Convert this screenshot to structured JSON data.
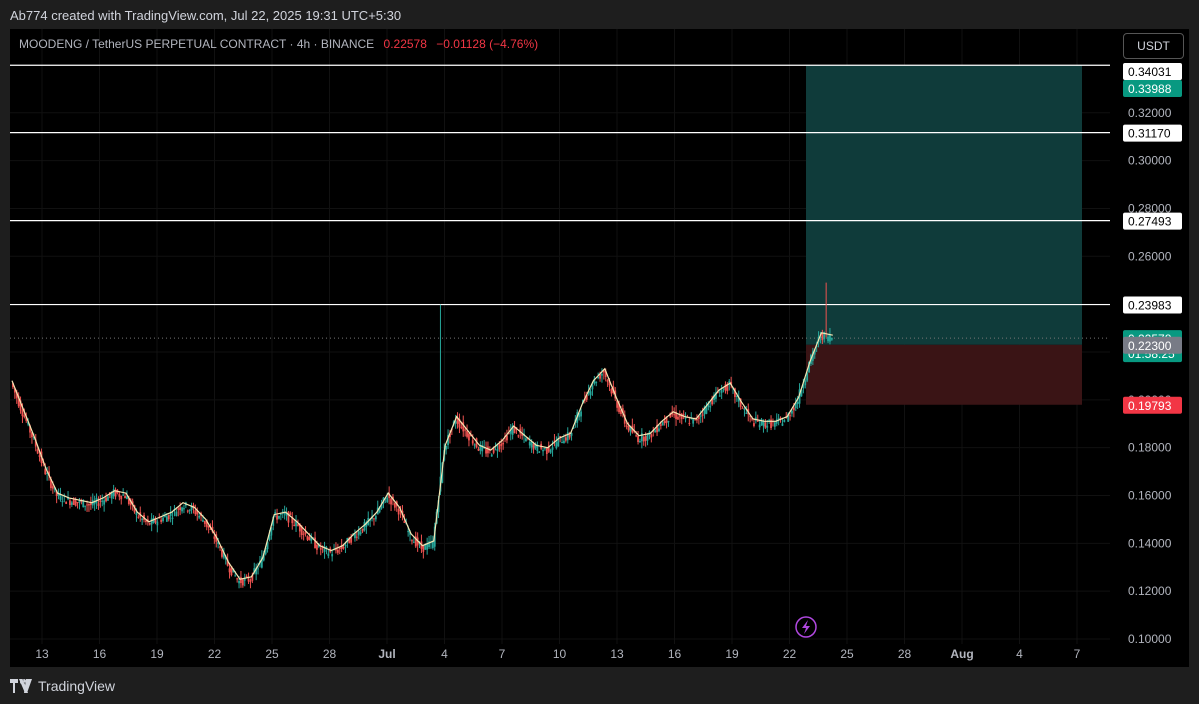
{
  "caption": "Ab774 created with TradingView.com, Jul 22, 2025 19:31 UTC+5:30",
  "symbol": {
    "title": "MOODENG / TetherUS PERPETUAL CONTRACT · 4h · BINANCE",
    "price": "0.22578",
    "change": "−0.01128 (−4.76%)"
  },
  "currency": "USDT",
  "brand": "TradingView",
  "colors": {
    "background": "#000000",
    "up": "#26a69a",
    "down": "#ef5350",
    "ma": "#f5e6b3",
    "target_zone": "#0f3b3a",
    "stop_zone": "#3a1415",
    "level_line": "#ffffff",
    "lightning": "#b048e0"
  },
  "chart_data": {
    "type": "candlestick",
    "ylim": [
      0.1,
      0.345
    ],
    "y_ticks": [
      "0.10000",
      "0.12000",
      "0.14000",
      "0.16000",
      "0.18000",
      "0.20000",
      "0.22000",
      "0.24000",
      "0.26000",
      "0.28000",
      "0.30000",
      "0.32000"
    ],
    "x_ticks": [
      "13",
      "16",
      "19",
      "22",
      "25",
      "28",
      "Jul",
      "4",
      "7",
      "10",
      "13",
      "16",
      "19",
      "22",
      "25",
      "28",
      "Aug",
      "4",
      "7"
    ],
    "bold_x_ticks": [
      "Jul",
      "Aug"
    ],
    "horizontal_levels": [
      0.33988,
      0.3117,
      0.27493,
      0.23983
    ],
    "price_labels": [
      {
        "value": "0.34031",
        "style": "white"
      },
      {
        "value": "0.33988",
        "style": "green"
      },
      {
        "value": "0.31170",
        "style": "white"
      },
      {
        "value": "0.27493",
        "style": "white"
      },
      {
        "value": "0.23983",
        "style": "white"
      },
      {
        "value": "0.22578",
        "style": "green",
        "extra": "01:58:25"
      },
      {
        "value": "0.22300",
        "style": "gray"
      },
      {
        "value": "0.19793",
        "style": "red"
      }
    ],
    "current_price": 0.22578,
    "position": {
      "entry": 0.223,
      "target": 0.33988,
      "stop": 0.19793
    },
    "price_path": [
      [
        0,
        0.207
      ],
      [
        1,
        0.195
      ],
      [
        2,
        0.183
      ],
      [
        3,
        0.17
      ],
      [
        4,
        0.16
      ],
      [
        5,
        0.158
      ],
      [
        6,
        0.157
      ],
      [
        7,
        0.156
      ],
      [
        8,
        0.158
      ],
      [
        9,
        0.161
      ],
      [
        10,
        0.16
      ],
      [
        11,
        0.152
      ],
      [
        12,
        0.148
      ],
      [
        13,
        0.15
      ],
      [
        14,
        0.152
      ],
      [
        15,
        0.156
      ],
      [
        16,
        0.154
      ],
      [
        17,
        0.149
      ],
      [
        18,
        0.141
      ],
      [
        19,
        0.131
      ],
      [
        20,
        0.124
      ],
      [
        21,
        0.125
      ],
      [
        22,
        0.133
      ],
      [
        23,
        0.151
      ],
      [
        24,
        0.152
      ],
      [
        25,
        0.148
      ],
      [
        26,
        0.143
      ],
      [
        27,
        0.138
      ],
      [
        28,
        0.136
      ],
      [
        29,
        0.138
      ],
      [
        30,
        0.143
      ],
      [
        31,
        0.147
      ],
      [
        32,
        0.152
      ],
      [
        33,
        0.16
      ],
      [
        34,
        0.154
      ],
      [
        35,
        0.143
      ],
      [
        36,
        0.138
      ],
      [
        37,
        0.14
      ],
      [
        38,
        0.18
      ],
      [
        39,
        0.192
      ],
      [
        40,
        0.186
      ],
      [
        41,
        0.18
      ],
      [
        42,
        0.178
      ],
      [
        43,
        0.182
      ],
      [
        44,
        0.188
      ],
      [
        45,
        0.184
      ],
      [
        46,
        0.18
      ],
      [
        47,
        0.179
      ],
      [
        48,
        0.183
      ],
      [
        49,
        0.185
      ],
      [
        50,
        0.197
      ],
      [
        51,
        0.207
      ],
      [
        52,
        0.212
      ],
      [
        53,
        0.2
      ],
      [
        54,
        0.189
      ],
      [
        55,
        0.184
      ],
      [
        56,
        0.185
      ],
      [
        57,
        0.19
      ],
      [
        58,
        0.194
      ],
      [
        59,
        0.192
      ],
      [
        60,
        0.191
      ],
      [
        61,
        0.197
      ],
      [
        62,
        0.203
      ],
      [
        63,
        0.206
      ],
      [
        64,
        0.198
      ],
      [
        65,
        0.191
      ],
      [
        66,
        0.19
      ],
      [
        67,
        0.19
      ],
      [
        68,
        0.192
      ],
      [
        69,
        0.2
      ],
      [
        70,
        0.215
      ],
      [
        71,
        0.227
      ],
      [
        72,
        0.226
      ]
    ],
    "x_range_days": [
      0,
      96
    ]
  }
}
